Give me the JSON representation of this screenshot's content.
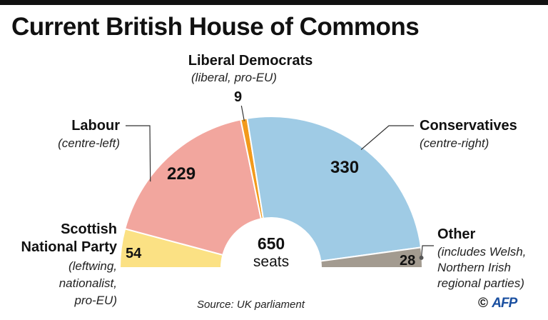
{
  "title": "Current British House of Commons",
  "source": "Source: UK parliament",
  "credit": {
    "symbol": "©",
    "brand": "AFP"
  },
  "colors": {
    "Scottish National Party": "#fbe184",
    "Labour": "#f2a69e",
    "Liberal Democrats": "#f29a1c",
    "Conservatives": "#9fcbe5",
    "Other": "#a39b90"
  },
  "chart_data": {
    "type": "pie",
    "subtype": "semicircle-parliament",
    "title": "Current British House of Commons",
    "total_label": "650",
    "total_unit": "seats",
    "series": [
      {
        "name": "Scottish National Party",
        "value": 54,
        "labels": [
          "Scottish",
          "National Party"
        ],
        "desc": [
          "(leftwing,",
          "nationalist,",
          "pro-EU)"
        ]
      },
      {
        "name": "Labour",
        "value": 229,
        "labels": [
          "Labour"
        ],
        "desc": [
          "(centre-left)"
        ]
      },
      {
        "name": "Liberal Democrats",
        "value": 9,
        "labels": [
          "Liberal Democrats"
        ],
        "desc": [
          "(liberal, pro-EU)"
        ]
      },
      {
        "name": "Conservatives",
        "value": 330,
        "labels": [
          "Conservatives"
        ],
        "desc": [
          "(centre-right)"
        ]
      },
      {
        "name": "Other",
        "value": 28,
        "labels": [
          "Other"
        ],
        "desc": [
          "(includes Welsh,",
          "Northern Irish",
          "regional parties)"
        ]
      }
    ]
  }
}
